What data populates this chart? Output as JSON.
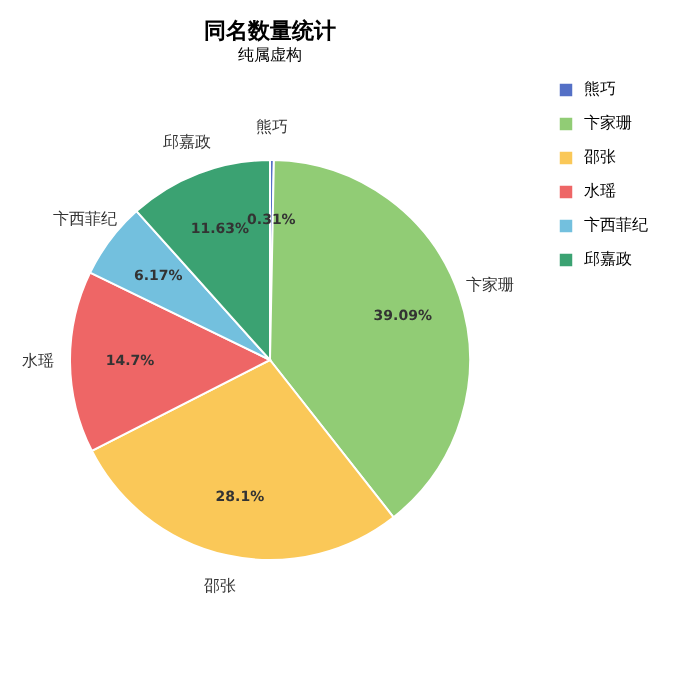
{
  "chart_data": {
    "type": "pie",
    "title": "同名数量统计",
    "subtitle": "纯属虚构",
    "categories": [
      "熊巧",
      "卞家珊",
      "邵张",
      "水瑶",
      "卞西菲纪",
      "邱嘉政"
    ],
    "values": [
      0.31,
      39.09,
      28.1,
      14.7,
      6.17,
      11.63
    ],
    "value_labels": [
      "0.31%",
      "39.09%",
      "28.1%",
      "14.7%",
      "6.17%",
      "11.63%"
    ],
    "colors": [
      "#5470c6",
      "#91cc75",
      "#fac858",
      "#ee6666",
      "#73c0de",
      "#3ba272"
    ],
    "legend": "right"
  }
}
